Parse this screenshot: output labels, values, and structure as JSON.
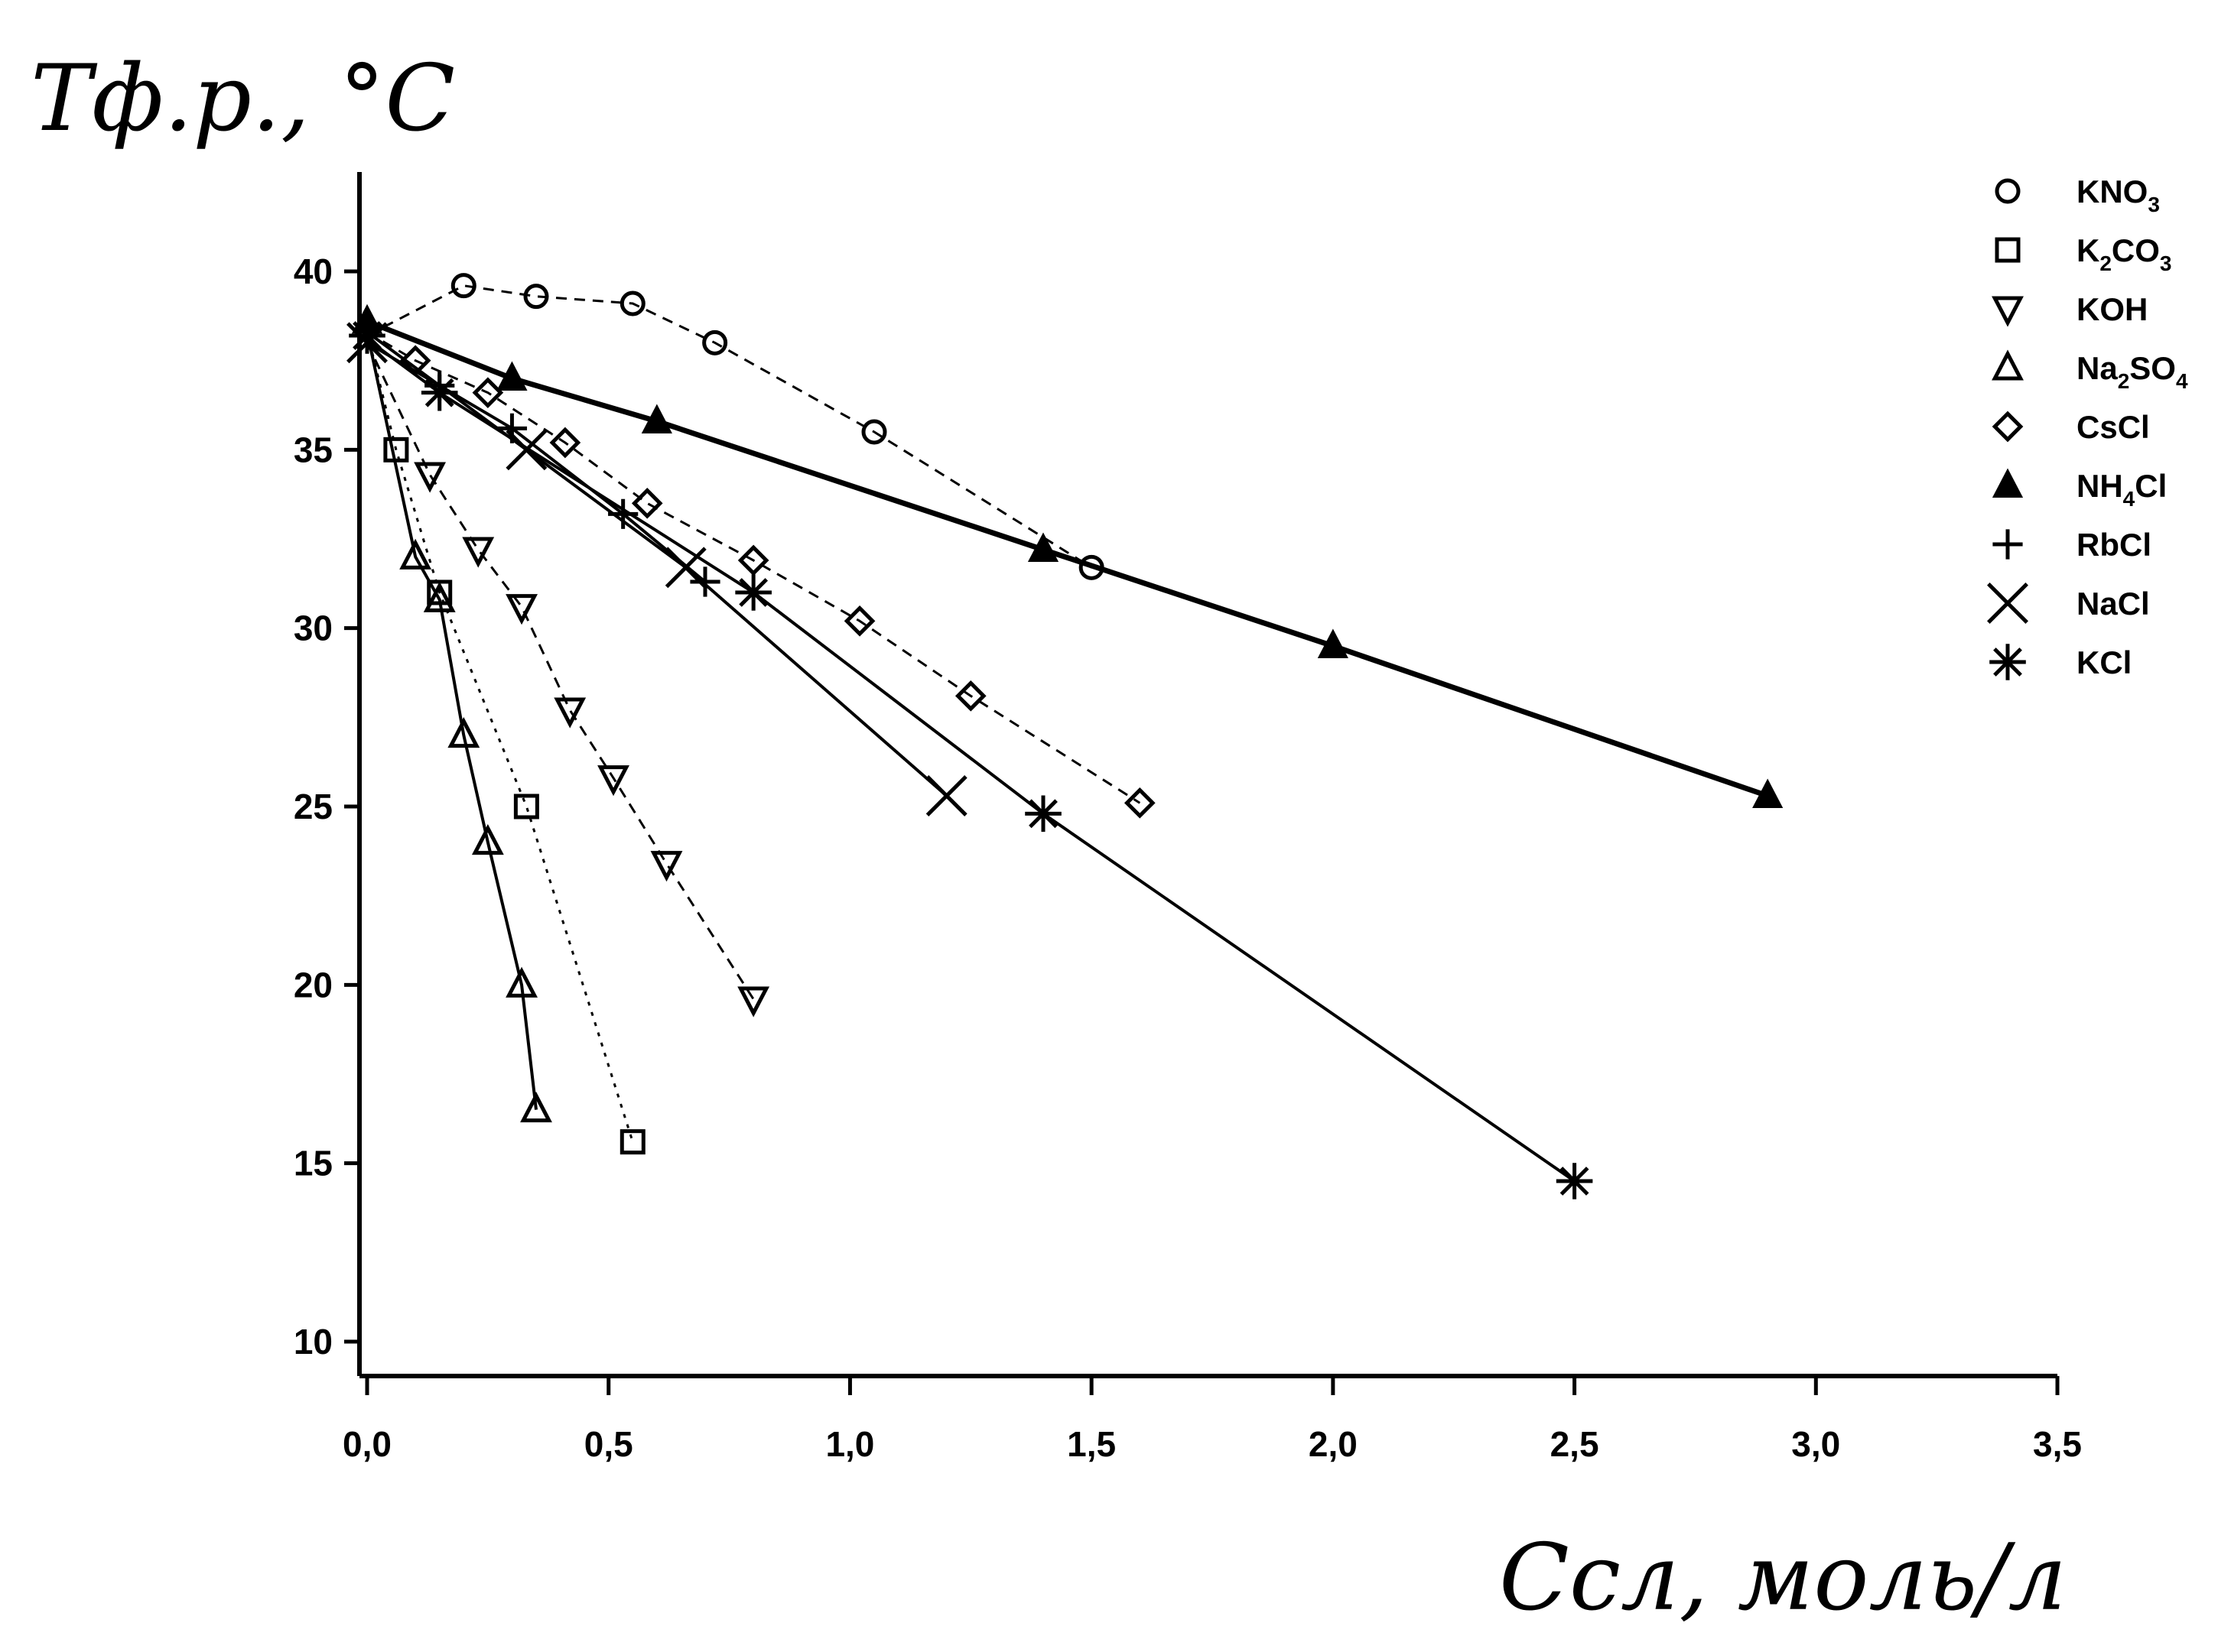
{
  "chart_data": {
    "type": "line",
    "title": "",
    "ylabel": "Tф.р., °C",
    "xlabel": "Cсл, моль/л",
    "xlim": [
      0,
      3.5
    ],
    "ylim": [
      10,
      42
    ],
    "x_ticks": [
      "0,0",
      "0,5",
      "1,0",
      "1,5",
      "2,0",
      "2,5",
      "3,0",
      "3,5"
    ],
    "y_ticks": [
      "10",
      "15",
      "20",
      "25",
      "30",
      "35",
      "40"
    ],
    "legend_position": "top-right",
    "series": [
      {
        "name": "KNO3",
        "marker": "circle-open",
        "line": "dashed",
        "points": [
          [
            0,
            38.2
          ],
          [
            0.2,
            39.6
          ],
          [
            0.35,
            39.3
          ],
          [
            0.55,
            39.1
          ],
          [
            0.72,
            38.0
          ],
          [
            1.05,
            35.5
          ],
          [
            1.5,
            31.7
          ]
        ]
      },
      {
        "name": "K2CO3",
        "marker": "square-open",
        "line": "dotted",
        "points": [
          [
            0,
            38.3
          ],
          [
            0.06,
            35.0
          ],
          [
            0.15,
            31.0
          ],
          [
            0.33,
            25.0
          ],
          [
            0.55,
            15.6
          ]
        ]
      },
      {
        "name": "KOH",
        "marker": "triangle-down-open",
        "line": "dashed",
        "points": [
          [
            0,
            38.0
          ],
          [
            0.13,
            34.3
          ],
          [
            0.23,
            32.2
          ],
          [
            0.32,
            30.6
          ],
          [
            0.42,
            27.7
          ],
          [
            0.51,
            25.8
          ],
          [
            0.62,
            23.4
          ],
          [
            0.8,
            19.6
          ]
        ]
      },
      {
        "name": "Na2SO4",
        "marker": "triangle-up-open",
        "line": "solid",
        "points": [
          [
            0,
            38.3
          ],
          [
            0.1,
            32.0
          ],
          [
            0.15,
            30.8
          ],
          [
            0.2,
            27.0
          ],
          [
            0.25,
            24.0
          ],
          [
            0.32,
            20.0
          ],
          [
            0.35,
            16.5
          ]
        ]
      },
      {
        "name": "CsCl",
        "marker": "diamond-open",
        "line": "dashed",
        "points": [
          [
            0,
            38.3
          ],
          [
            0.1,
            37.5
          ],
          [
            0.25,
            36.6
          ],
          [
            0.41,
            35.2
          ],
          [
            0.58,
            33.5
          ],
          [
            0.8,
            31.9
          ],
          [
            1.02,
            30.2
          ],
          [
            1.25,
            28.1
          ],
          [
            1.6,
            25.1
          ]
        ]
      },
      {
        "name": "NH4Cl",
        "marker": "triangle-up-filled",
        "line": "solid",
        "points": [
          [
            0,
            38.6
          ],
          [
            0.3,
            37.0
          ],
          [
            0.6,
            35.8
          ],
          [
            1.4,
            32.2
          ],
          [
            2.0,
            29.5
          ],
          [
            2.9,
            25.3
          ]
        ]
      },
      {
        "name": "RbCl",
        "marker": "plus",
        "line": "solid",
        "points": [
          [
            0,
            38.0
          ],
          [
            0.15,
            36.8
          ],
          [
            0.3,
            35.6
          ],
          [
            0.53,
            33.2
          ],
          [
            0.7,
            31.3
          ]
        ]
      },
      {
        "name": "NaCl",
        "marker": "x",
        "line": "solid",
        "points": [
          [
            0,
            38.3
          ],
          [
            0.33,
            35.0
          ],
          [
            0.66,
            31.7
          ],
          [
            1.2,
            25.3
          ]
        ]
      },
      {
        "name": "KCl",
        "marker": "asterisk",
        "line": "solid",
        "points": [
          [
            0,
            38.1
          ],
          [
            0.15,
            36.6
          ],
          [
            0.8,
            31.0
          ],
          [
            1.4,
            24.8
          ],
          [
            2.5,
            14.5
          ]
        ]
      }
    ],
    "legend": [
      {
        "formula": "KNO",
        "sub": "3",
        "tail": ""
      },
      {
        "formula": "K",
        "sub": "2",
        "tail": "CO",
        "sub2": "3"
      },
      {
        "formula": "KOH",
        "sub": "",
        "tail": ""
      },
      {
        "formula": "Na",
        "sub": "2",
        "tail": "SO",
        "sub2": "4"
      },
      {
        "formula": "CsCl",
        "sub": "",
        "tail": ""
      },
      {
        "formula": "NH",
        "sub": "4",
        "tail": "Cl"
      },
      {
        "formula": "RbCl",
        "sub": "",
        "tail": ""
      },
      {
        "formula": "NaCl",
        "sub": "",
        "tail": ""
      },
      {
        "formula": "KCl",
        "sub": "",
        "tail": ""
      }
    ]
  }
}
